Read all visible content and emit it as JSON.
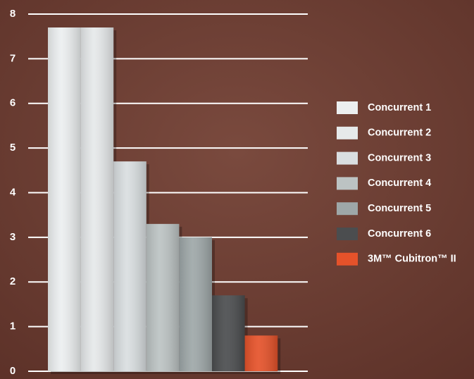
{
  "chart_data": {
    "type": "bar",
    "categories": [
      "Concurrent 1",
      "Concurrent 2",
      "Concurrent 3",
      "Concurrent 4",
      "Concurrent 5",
      "Concurrent 6",
      "3M™ Cubitron™ II"
    ],
    "values": [
      7.7,
      7.7,
      4.7,
      3.3,
      3.0,
      1.7,
      0.8
    ],
    "colors": [
      "#eceff0",
      "#e6e9ea",
      "#d9dee0",
      "#bcc3c3",
      "#9ea7a8",
      "#4b4d4f",
      "#e5522a"
    ],
    "ylim": [
      0,
      8
    ],
    "yticks": [
      0,
      1,
      2,
      3,
      4,
      5,
      6,
      7,
      8
    ],
    "grid": true
  }
}
